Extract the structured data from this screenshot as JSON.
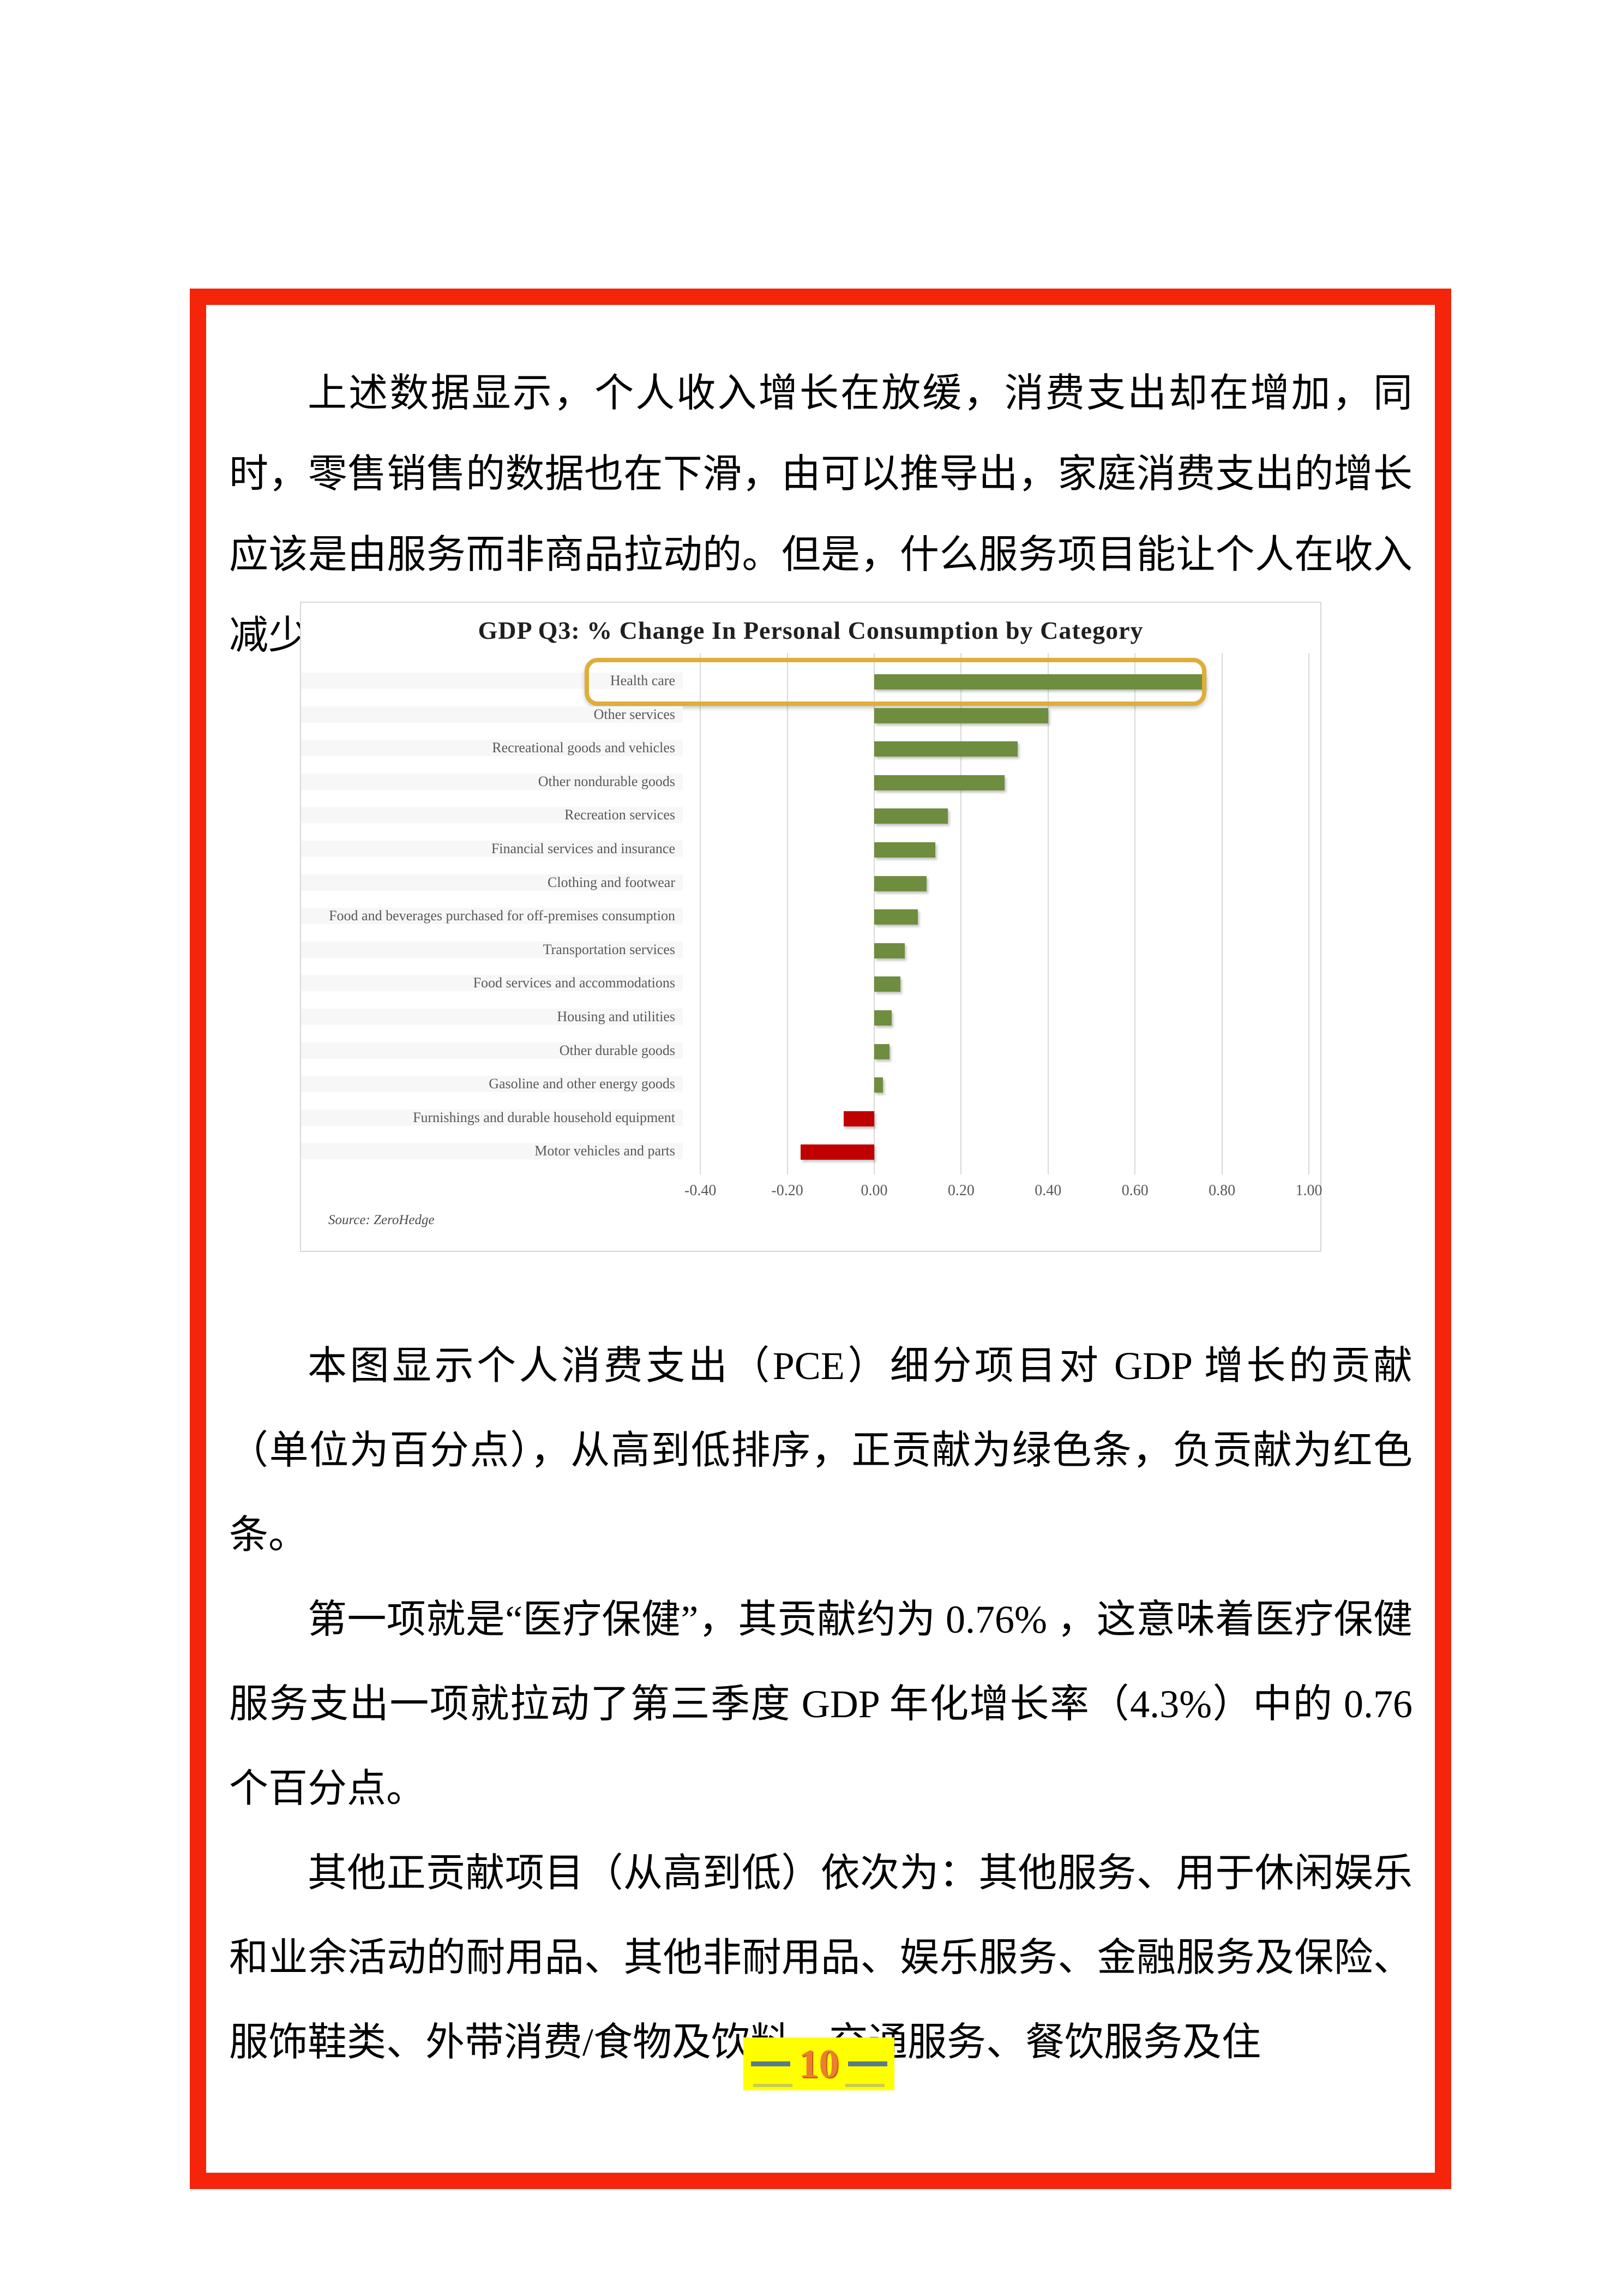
{
  "page": {
    "bg_color": "#ffffff",
    "frame_color": "#f4250b",
    "highlight_color": "#ffff00",
    "number_label": "10"
  },
  "paragraphs": [
    {
      "text": "上述数据显示，个人收入增长在放缓，消费支出却在增加，同时，零售销售的数据也在下滑，由可以推导出，家庭消费支出的增长应该是由服务而非商品拉动的。但是，什么服务项目能让个人在收入减少的情形下仍增加购买呢？答案是医疗保健。"
    },
    {
      "text": "本图显示个人消费支出（PCE）细分项目对 GDP 增长的贡献（单位为百分点），从高到低排序，正贡献为绿色条，负贡献为红色条。"
    },
    {
      "text": "第一项就是“医疗保健”，其贡献约为 0.76% ，这意味着医疗保健服务支出一项就拉动了第三季度 GDP 年化增长率（4.3%）中的 0.76 个百分点。"
    },
    {
      "text": "其他正贡献项目（从高到低）依次为：其他服务、用于休闲娱乐和业余活动的耐用品、其他非耐用品、娱乐服务、金融服务及保险、服饰鞋类、外带消费/食物及饮料、交通服务、餐饮服务及住"
    }
  ],
  "chart_data": {
    "type": "bar",
    "orientation": "horizontal",
    "title": "GDP Q3: % Change In Personal Consumption by Category",
    "source": "Source: ZeroHedge",
    "categories": [
      "Health care",
      "Other services",
      "Recreational goods and vehicles",
      "Other nondurable goods",
      "Recreation services",
      "Financial services and insurance",
      "Clothing and footwear",
      "Food and beverages purchased for off-premises consumption",
      "Transportation services",
      "Food services and accommodations",
      "Housing and utilities",
      "Other durable goods",
      "Gasoline and other energy goods",
      "Furnishings and durable household equipment",
      "Motor vehicles and parts"
    ],
    "values": [
      0.76,
      0.4,
      0.33,
      0.3,
      0.17,
      0.14,
      0.12,
      0.1,
      0.07,
      0.06,
      0.04,
      0.035,
      0.02,
      -0.07,
      -0.17
    ],
    "xlim": [
      -0.4,
      1.0
    ],
    "xticks": [
      -0.4,
      -0.2,
      0.0,
      0.2,
      0.4,
      0.6,
      0.8,
      1.0
    ],
    "tick_labels": [
      "-0.40",
      "-0.20",
      "0.00",
      "0.20",
      "0.40",
      "0.60",
      "0.80",
      "1.00"
    ],
    "grid": true,
    "legend": false,
    "positive_color": "#6f8d3e",
    "negative_color": "#c00000",
    "highlight_category": "Health care",
    "highlight_box_color": "#dfae38"
  }
}
